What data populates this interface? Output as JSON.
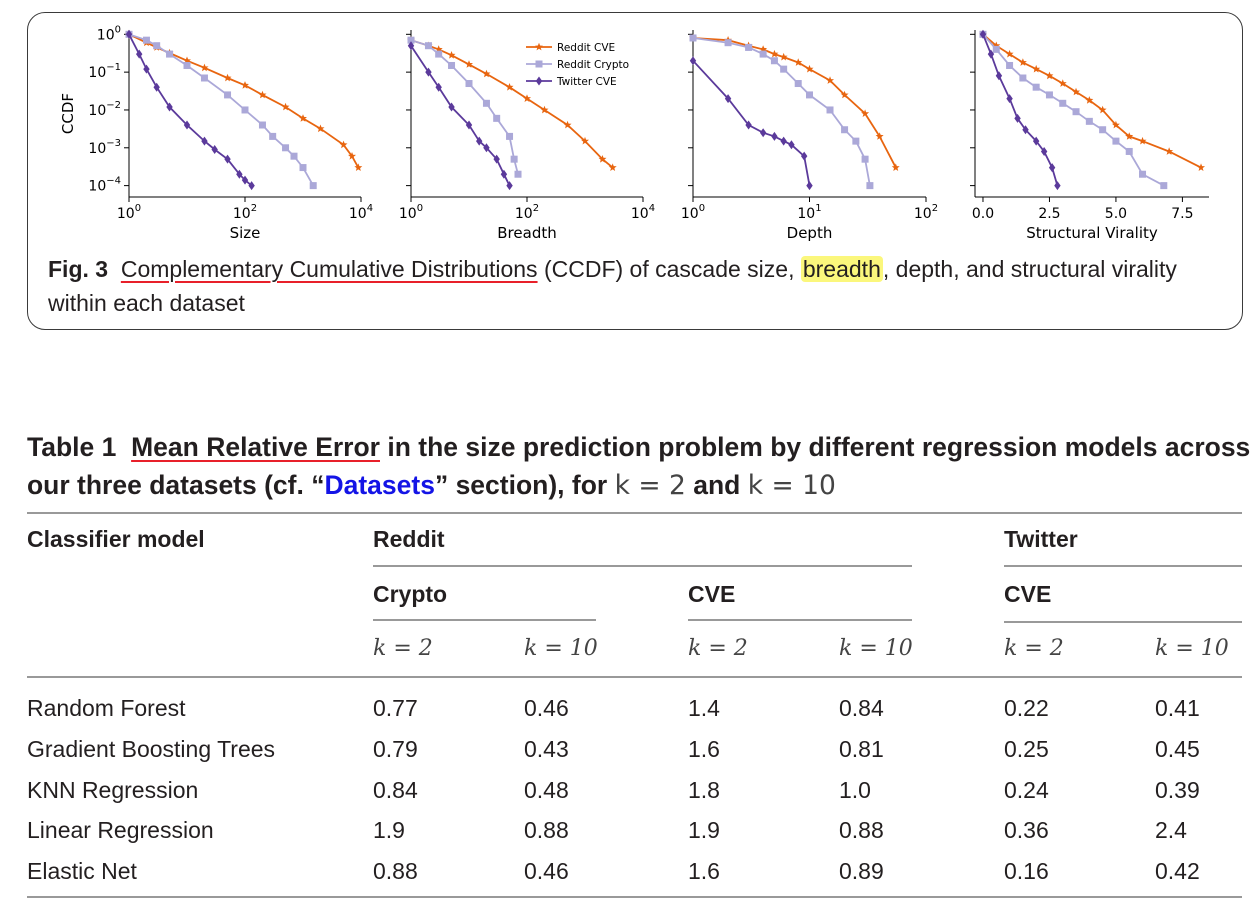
{
  "figure": {
    "caption_label": "Fig. 3",
    "caption_link": "Complementary Cumulative Distributions",
    "caption_mid": " (CCDF) of cascade size, ",
    "caption_highlight": "breadth",
    "caption_end": ", depth, and structural virality within each dataset"
  },
  "colors": {
    "reddit_cve": "#e8650f",
    "reddit_crypto": "#aba8d8",
    "twitter_cve": "#5b3a9b",
    "link_blue": "#1414e6",
    "underline_red": "#e8202a",
    "highlight_yellow": "#fbf77c"
  },
  "chart_data": [
    {
      "type": "line",
      "xlabel": "Size",
      "ylabel": "CCDF",
      "xscale": "log",
      "yscale": "log",
      "xlim": [
        1,
        10000
      ],
      "ylim": [
        5e-05,
        1.3
      ],
      "xticks": [
        "10^0",
        "10^2",
        "10^4"
      ],
      "yticks": [
        "10^0",
        "10^-1",
        "10^-2",
        "10^-3",
        "10^-4"
      ],
      "legend": null,
      "series": [
        {
          "name": "Reddit CVE",
          "marker": "star",
          "x": [
            1,
            2,
            3,
            5,
            10,
            20,
            50,
            100,
            200,
            500,
            1000,
            2000,
            5000,
            7000,
            9000
          ],
          "y": [
            1,
            0.6,
            0.45,
            0.32,
            0.2,
            0.13,
            0.07,
            0.045,
            0.025,
            0.012,
            0.006,
            0.0032,
            0.0012,
            0.0006,
            0.0003
          ]
        },
        {
          "name": "Reddit Crypto",
          "marker": "square",
          "x": [
            1,
            2,
            3,
            5,
            10,
            20,
            50,
            100,
            200,
            300,
            500,
            700,
            1000,
            1500
          ],
          "y": [
            1,
            0.7,
            0.5,
            0.3,
            0.15,
            0.07,
            0.025,
            0.01,
            0.004,
            0.002,
            0.001,
            0.0006,
            0.0003,
            0.0001
          ]
        },
        {
          "name": "Twitter CVE",
          "marker": "diamond",
          "x": [
            1,
            1.5,
            2,
            3,
            5,
            10,
            20,
            30,
            50,
            80,
            100,
            130
          ],
          "y": [
            1,
            0.3,
            0.12,
            0.04,
            0.012,
            0.004,
            0.0015,
            0.0009,
            0.0005,
            0.0002,
            0.00014,
            0.0001
          ]
        }
      ]
    },
    {
      "type": "line",
      "xlabel": "Breadth",
      "ylabel": "",
      "xscale": "log",
      "yscale": "log",
      "xlim": [
        1,
        10000
      ],
      "ylim": [
        5e-05,
        1.3
      ],
      "xticks": [
        "10^0",
        "10^2",
        "10^4"
      ],
      "legend": "upper-right",
      "series": [
        {
          "name": "Reddit CVE",
          "marker": "star",
          "x": [
            1,
            2,
            3,
            5,
            10,
            20,
            50,
            100,
            200,
            500,
            1000,
            2000,
            3000
          ],
          "y": [
            0.7,
            0.5,
            0.4,
            0.28,
            0.16,
            0.09,
            0.04,
            0.02,
            0.01,
            0.004,
            0.0015,
            0.0005,
            0.0003
          ]
        },
        {
          "name": "Reddit Crypto",
          "marker": "square",
          "x": [
            1,
            2,
            3,
            5,
            10,
            20,
            30,
            50,
            60,
            70
          ],
          "y": [
            0.7,
            0.5,
            0.3,
            0.15,
            0.05,
            0.015,
            0.006,
            0.002,
            0.0005,
            0.0002
          ]
        },
        {
          "name": "Twitter CVE",
          "marker": "diamond",
          "x": [
            1,
            2,
            3,
            5,
            10,
            15,
            20,
            30,
            40,
            50
          ],
          "y": [
            0.5,
            0.1,
            0.04,
            0.012,
            0.004,
            0.0015,
            0.001,
            0.0005,
            0.0002,
            0.0001
          ]
        }
      ]
    },
    {
      "type": "line",
      "xlabel": "Depth",
      "ylabel": "",
      "xscale": "log",
      "yscale": "log",
      "xlim": [
        1,
        100
      ],
      "ylim": [
        5e-05,
        1.3
      ],
      "xticks": [
        "10^0",
        "10^1",
        "10^2"
      ],
      "legend": null,
      "series": [
        {
          "name": "Reddit CVE",
          "marker": "star",
          "x": [
            1,
            2,
            3,
            4,
            5,
            6,
            8,
            10,
            15,
            20,
            30,
            40,
            55
          ],
          "y": [
            0.8,
            0.7,
            0.5,
            0.4,
            0.3,
            0.25,
            0.18,
            0.12,
            0.06,
            0.025,
            0.008,
            0.002,
            0.0003
          ]
        },
        {
          "name": "Reddit Crypto",
          "marker": "square",
          "x": [
            1,
            2,
            3,
            4,
            5,
            6,
            8,
            10,
            15,
            20,
            25,
            30,
            33
          ],
          "y": [
            0.8,
            0.6,
            0.45,
            0.3,
            0.2,
            0.12,
            0.05,
            0.025,
            0.01,
            0.003,
            0.0015,
            0.0005,
            0.0001
          ]
        },
        {
          "name": "Twitter CVE",
          "marker": "diamond",
          "x": [
            1,
            2,
            3,
            4,
            5,
            6,
            7,
            9,
            10
          ],
          "y": [
            0.2,
            0.02,
            0.004,
            0.0025,
            0.002,
            0.0015,
            0.0012,
            0.0006,
            0.0001
          ]
        }
      ]
    },
    {
      "type": "line",
      "xlabel": "Structural Virality",
      "ylabel": "",
      "xscale": "linear",
      "yscale": "log",
      "xlim": [
        -0.3,
        8.5
      ],
      "ylim": [
        5e-05,
        1.3
      ],
      "xticks": [
        "0.0",
        "2.5",
        "5.0",
        "7.5"
      ],
      "legend": null,
      "series": [
        {
          "name": "Reddit CVE",
          "marker": "star",
          "x": [
            0,
            0.5,
            1,
            1.5,
            2,
            2.5,
            3,
            3.5,
            4,
            4.5,
            5,
            5.5,
            6,
            7,
            8.2
          ],
          "y": [
            1,
            0.5,
            0.3,
            0.18,
            0.12,
            0.08,
            0.05,
            0.03,
            0.018,
            0.01,
            0.004,
            0.002,
            0.0015,
            0.0008,
            0.0003
          ]
        },
        {
          "name": "Reddit Crypto",
          "marker": "square",
          "x": [
            0,
            0.5,
            1,
            1.5,
            2,
            2.5,
            3,
            3.5,
            4,
            4.5,
            5,
            5.5,
            6,
            6.8
          ],
          "y": [
            1,
            0.4,
            0.15,
            0.07,
            0.04,
            0.025,
            0.015,
            0.009,
            0.005,
            0.003,
            0.0015,
            0.0008,
            0.0002,
            0.0001
          ]
        },
        {
          "name": "Twitter CVE",
          "marker": "diamond",
          "x": [
            0,
            0.3,
            0.6,
            1,
            1.3,
            1.6,
            2,
            2.3,
            2.6,
            2.8
          ],
          "y": [
            1,
            0.3,
            0.08,
            0.02,
            0.006,
            0.003,
            0.0015,
            0.0008,
            0.0003,
            0.0001
          ]
        }
      ]
    }
  ],
  "table": {
    "label": "Table 1",
    "title_link": "Mean Relative Error",
    "title_part1": " in the size prediction problem by different regression models across our three datasets (cf. “",
    "title_ref": "Datasets",
    "title_part2": "” section), for ",
    "title_math1": "k = 2",
    "title_and": " and ",
    "title_math2": "k = 10",
    "col_model": "Classifier model",
    "group_reddit": "Reddit",
    "group_twitter": "Twitter",
    "sub_crypto": "Crypto",
    "sub_cve_reddit": "CVE",
    "sub_cve_twitter": "CVE",
    "k_headers": [
      "k = 2",
      "k = 10",
      "k = 2",
      "k = 10",
      "k = 2",
      "k = 10"
    ],
    "rows": [
      {
        "model": "Random Forest",
        "values": [
          "0.77",
          "0.46",
          "1.4",
          "0.84",
          "0.22",
          "0.41"
        ]
      },
      {
        "model": "Gradient Boosting Trees",
        "values": [
          "0.79",
          "0.43",
          "1.6",
          "0.81",
          "0.25",
          "0.45"
        ]
      },
      {
        "model": "KNN Regression",
        "values": [
          "0.84",
          "0.48",
          "1.8",
          "1.0",
          "0.24",
          "0.39"
        ]
      },
      {
        "model": "Linear Regression",
        "values": [
          "1.9",
          "0.88",
          "1.9",
          "0.88",
          "0.36",
          "2.4"
        ]
      },
      {
        "model": "Elastic Net",
        "values": [
          "0.88",
          "0.46",
          "1.6",
          "0.89",
          "0.16",
          "0.42"
        ]
      }
    ]
  }
}
